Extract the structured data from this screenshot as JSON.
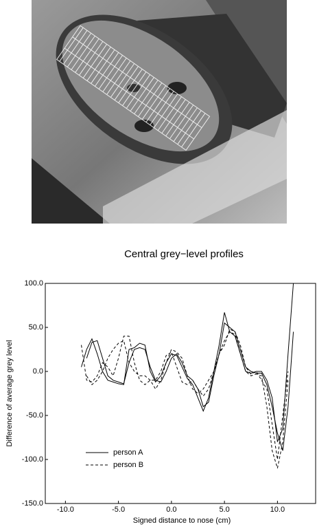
{
  "chart_data": {
    "type": "line",
    "title": "Central grey−level profiles",
    "x_label": "Signed distance to nose (cm)",
    "y_label": "Difference of average grey level",
    "x": [
      -8.5,
      -8,
      -7.5,
      -7,
      -6.5,
      -6,
      -5.5,
      -5,
      -4.5,
      -4,
      -3.5,
      -3,
      -2.5,
      -2,
      -1.5,
      -1,
      -0.5,
      0,
      0.5,
      1,
      1.5,
      2,
      2.5,
      3,
      3.5,
      4,
      4.5,
      5,
      5.5,
      6,
      6.5,
      7,
      7.5,
      8,
      8.5,
      9,
      9.5,
      10,
      10.5,
      11,
      11.5
    ],
    "series": [
      {
        "name": "person A",
        "color": "#000000",
        "dashed": false,
        "values": [
          5,
          25,
          37,
          20,
          0,
          -10,
          -12,
          -14,
          -15,
          25,
          27,
          32,
          30,
          0,
          -12,
          -5,
          10,
          20,
          18,
          5,
          -8,
          -15,
          -30,
          -45,
          -30,
          0,
          30,
          67,
          45,
          40,
          20,
          0,
          -2,
          0,
          0,
          -10,
          -30,
          -80,
          -65,
          20,
          100
        ]
      },
      {
        "color": "#000000",
        "dashed": false,
        "values": [
          null,
          15,
          33,
          35,
          15,
          -5,
          -10,
          -12,
          -14,
          10,
          25,
          27,
          25,
          5,
          -10,
          -12,
          0,
          15,
          20,
          10,
          -5,
          -10,
          -20,
          -40,
          -35,
          -5,
          20,
          55,
          50,
          45,
          25,
          5,
          0,
          -2,
          -2,
          -15,
          -40,
          -70,
          -90,
          -40,
          45
        ]
      },
      {
        "name": "person B",
        "color": "#000000",
        "dashed": true,
        "values": [
          30,
          -10,
          -12,
          -5,
          10,
          5,
          -5,
          15,
          40,
          40,
          10,
          -10,
          -15,
          -10,
          -10,
          0,
          18,
          22,
          5,
          -12,
          -15,
          -10,
          -20,
          -28,
          -20,
          0,
          20,
          35,
          45,
          42,
          20,
          0,
          -5,
          -3,
          -5,
          -40,
          -90,
          -110,
          -80,
          -10,
          null
        ]
      },
      {
        "color": "#000000",
        "dashed": true,
        "values": [
          null,
          -5,
          -15,
          -10,
          0,
          15,
          25,
          32,
          35,
          10,
          0,
          -5,
          -5,
          -10,
          -20,
          -10,
          10,
          25,
          22,
          15,
          -5,
          -20,
          -25,
          -20,
          -10,
          0,
          20,
          30,
          48,
          45,
          30,
          5,
          -3,
          0,
          -10,
          -20,
          -60,
          -100,
          -50,
          0,
          null
        ]
      }
    ],
    "xlim": [
      -11.9,
      13.6
    ],
    "ylim": [
      -150,
      100
    ],
    "xticks": [
      {
        "value": -10,
        "label": "-10.0"
      },
      {
        "value": -5,
        "label": "-5.0"
      },
      {
        "value": 0,
        "label": "0.0"
      },
      {
        "value": 5,
        "label": "5.0"
      },
      {
        "value": 10,
        "label": "10.0"
      }
    ],
    "yticks": [
      {
        "value": -150,
        "label": "-150.0"
      },
      {
        "value": -100,
        "label": "-100.0"
      },
      {
        "value": -50,
        "label": "-50.0"
      },
      {
        "value": 0,
        "label": "0.0"
      },
      {
        "value": 50,
        "label": "50.0"
      },
      {
        "value": 100,
        "label": "100.0"
      }
    ]
  }
}
